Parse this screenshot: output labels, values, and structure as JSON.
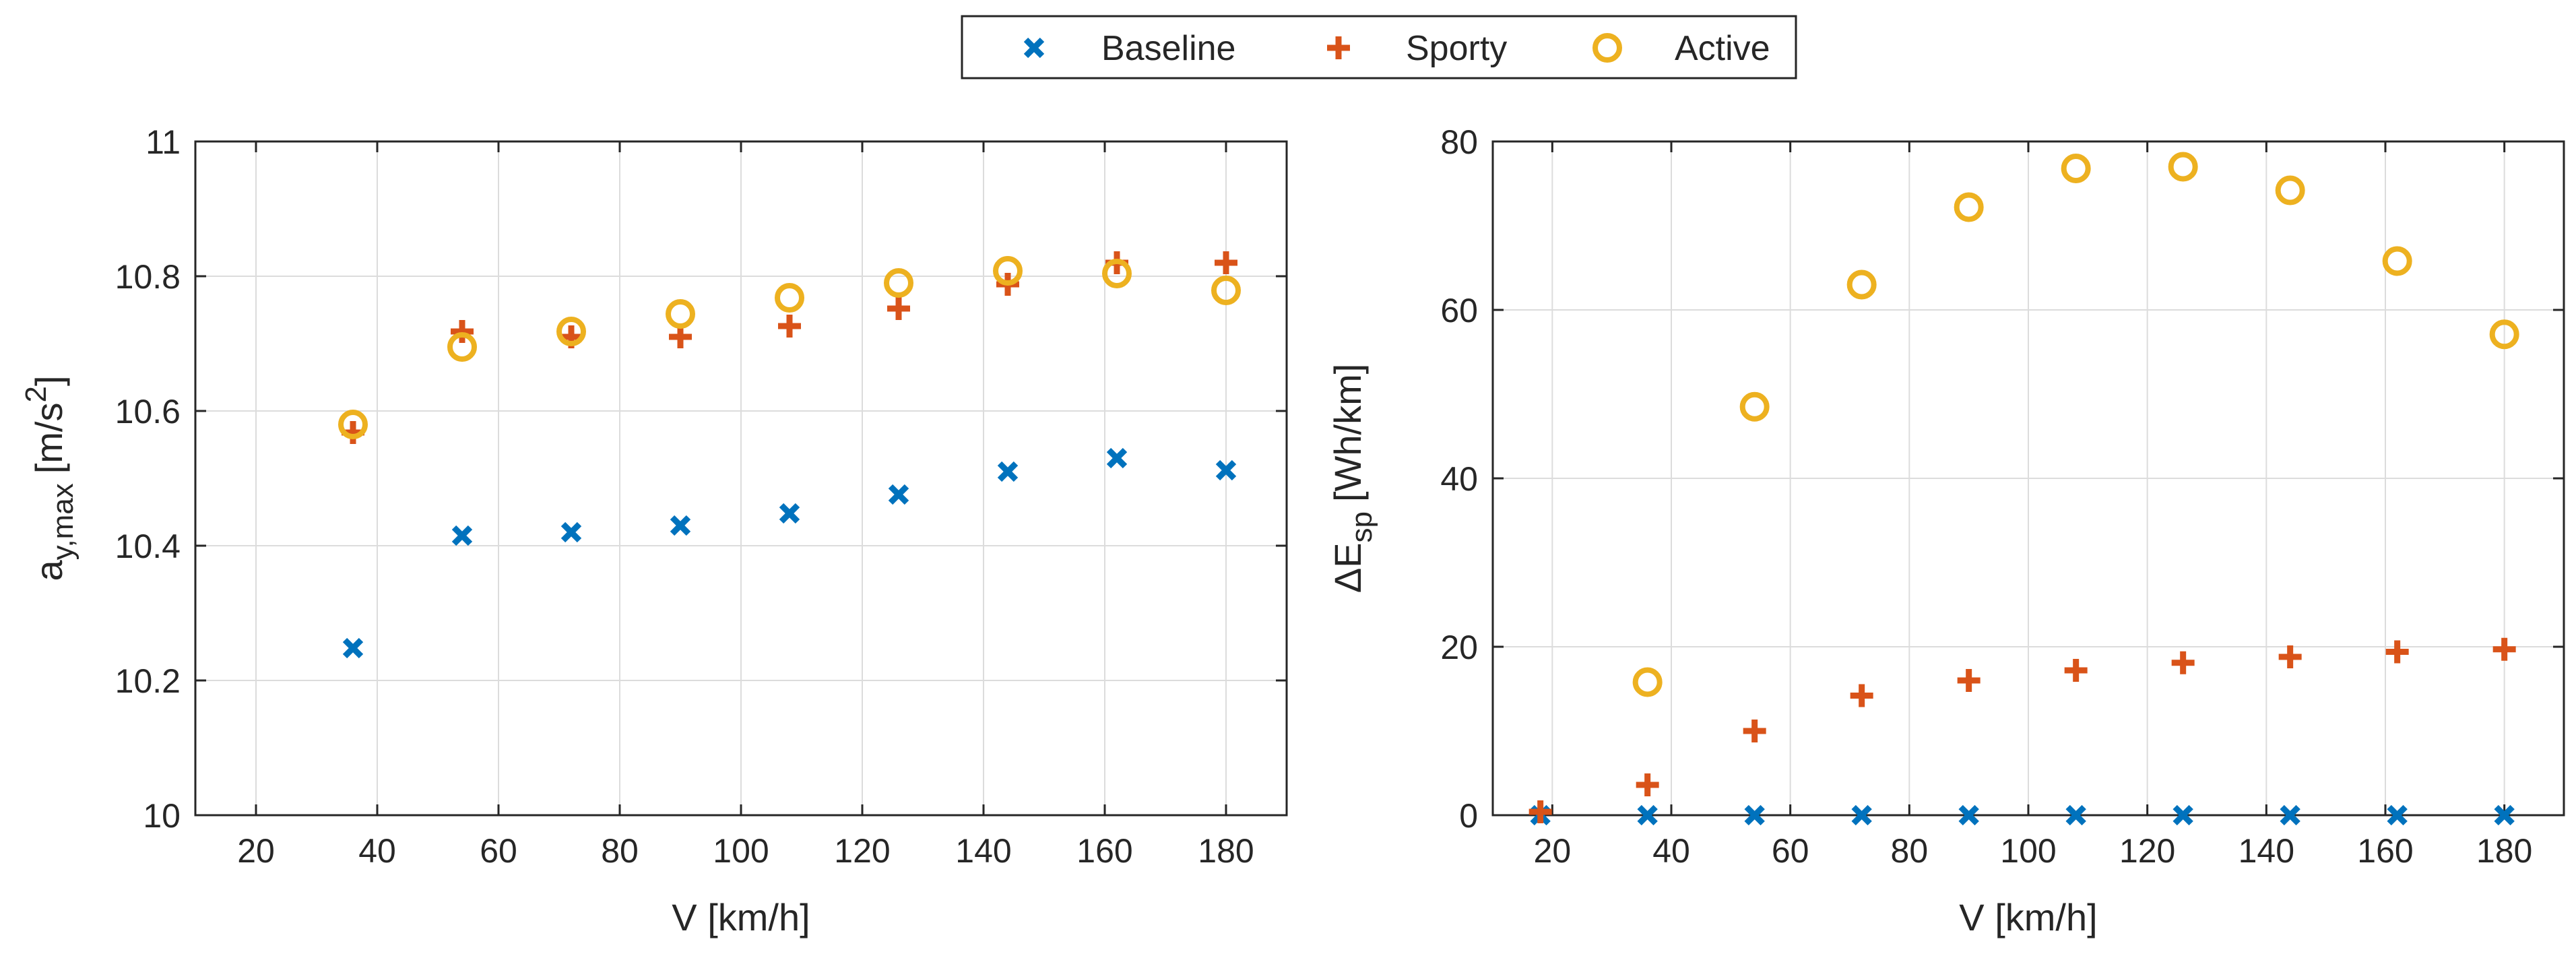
{
  "legend": {
    "entries": [
      {
        "name": "Baseline",
        "marker": "x",
        "color": "#0072BD"
      },
      {
        "name": "Sporty",
        "marker": "+",
        "color": "#D95319"
      },
      {
        "name": "Active",
        "marker": "o",
        "color": "#EDB120"
      }
    ]
  },
  "chart_data": [
    {
      "type": "scatter",
      "xlabel": "V [km/h]",
      "ylabel_main": "a",
      "ylabel_sub": "y,max",
      "ylabel_unit_pre": "[m/s",
      "ylabel_sup": "2",
      "ylabel_unit_post": "]",
      "xlim": [
        10,
        190
      ],
      "ylim": [
        10,
        11
      ],
      "xticks": [
        20,
        40,
        60,
        80,
        100,
        120,
        140,
        160,
        180
      ],
      "xtick_labels": [
        "20",
        "40",
        "60",
        "80",
        "100",
        "120",
        "140",
        "160",
        "180"
      ],
      "yticks": [
        10,
        10.2,
        10.4,
        10.6,
        10.8,
        11
      ],
      "ytick_labels": [
        "10",
        "10.2",
        "10.4",
        "10.6",
        "10.8",
        "11"
      ],
      "grid": true,
      "series": [
        {
          "name": "Baseline",
          "x": [
            36,
            54,
            72,
            90,
            108,
            126,
            144,
            162,
            180
          ],
          "y": [
            10.248,
            10.415,
            10.42,
            10.43,
            10.448,
            10.476,
            10.51,
            10.53,
            10.512
          ]
        },
        {
          "name": "Sporty",
          "x": [
            36,
            54,
            72,
            90,
            108,
            126,
            144,
            162,
            180
          ],
          "y": [
            10.568,
            10.718,
            10.71,
            10.71,
            10.726,
            10.752,
            10.788,
            10.82,
            10.82
          ]
        },
        {
          "name": "Active",
          "x": [
            36,
            54,
            72,
            90,
            108,
            126,
            144,
            162,
            180
          ],
          "y": [
            10.58,
            10.695,
            10.718,
            10.744,
            10.768,
            10.79,
            10.808,
            10.804,
            10.779
          ]
        }
      ]
    },
    {
      "type": "scatter",
      "xlabel": "V [km/h]",
      "ylabel_main": "ΔE",
      "ylabel_sub": "sp",
      "ylabel_unit_pre": "[Wh/km]",
      "ylabel_sup": "",
      "ylabel_unit_post": "",
      "xlim": [
        10,
        190
      ],
      "ylim": [
        0,
        80
      ],
      "xticks": [
        20,
        40,
        60,
        80,
        100,
        120,
        140,
        160,
        180
      ],
      "xtick_labels": [
        "20",
        "40",
        "60",
        "80",
        "100",
        "120",
        "140",
        "160",
        "180"
      ],
      "yticks": [
        0,
        20,
        40,
        60,
        80
      ],
      "ytick_labels": [
        "0",
        "20",
        "40",
        "60",
        "80"
      ],
      "grid": true,
      "series": [
        {
          "name": "Baseline",
          "x": [
            18,
            36,
            54,
            72,
            90,
            108,
            126,
            144,
            162,
            180
          ],
          "y": [
            0,
            0,
            0,
            0,
            0,
            0,
            0,
            0,
            0,
            0
          ]
        },
        {
          "name": "Sporty",
          "x": [
            18,
            36,
            54,
            72,
            90,
            108,
            126,
            144,
            162,
            180
          ],
          "y": [
            0.4,
            3.6,
            10.0,
            14.2,
            16.0,
            17.2,
            18.1,
            18.8,
            19.4,
            19.7
          ]
        },
        {
          "name": "Active",
          "x": [
            36,
            54,
            72,
            90,
            108,
            126,
            144,
            162,
            180
          ],
          "y": [
            15.8,
            48.5,
            63.0,
            72.2,
            76.8,
            77.0,
            74.2,
            65.8,
            57.1
          ]
        }
      ]
    }
  ]
}
